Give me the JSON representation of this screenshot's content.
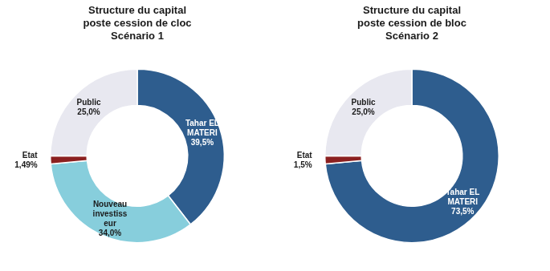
{
  "chart_data": [
    {
      "type": "doughnut",
      "title": "Structure du capital\nposte cession de cloc\nScénario 1",
      "categories": [
        "Tahar EL\nMATERI",
        "Nouveau\ninvestiss\neur",
        "Etat",
        "Public"
      ],
      "values": [
        39.5,
        34.0,
        1.49,
        25.0
      ],
      "value_labels": [
        "39,5%",
        "34,0%",
        "1,49%",
        "25,0%"
      ],
      "colors": [
        "#2e5d8e",
        "#87cedc",
        "#8b2020",
        "#e8e8f0"
      ],
      "data_labels": true,
      "legend": false
    },
    {
      "type": "doughnut",
      "title": "Structure du capital\nposte cession de bloc\nScénario 2",
      "categories": [
        "Tahar EL\nMATERI",
        "Etat",
        "Public"
      ],
      "values": [
        73.5,
        1.5,
        25.0
      ],
      "value_labels": [
        "73,5%",
        "1,5%",
        "25,0%"
      ],
      "colors": [
        "#2e5d8e",
        "#8b2020",
        "#e8e8f0"
      ],
      "data_labels": true,
      "legend": false
    }
  ]
}
